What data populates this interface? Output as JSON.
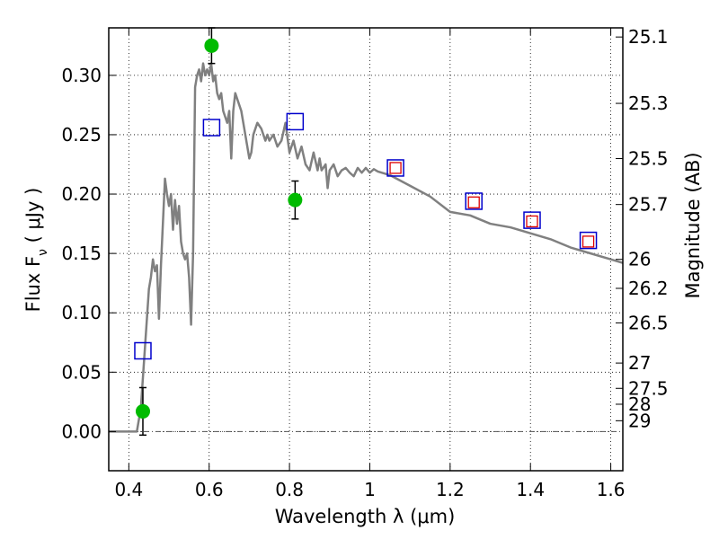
{
  "chart_data": {
    "type": "scatter",
    "xlabel": "Wavelength  λ (μm)",
    "ylabel": "Flux  F_ν  ( μJy )",
    "y2label": "Magnitude (AB)",
    "xlim": [
      0.35,
      1.63
    ],
    "ylim": [
      -0.033,
      0.34
    ],
    "grid": true,
    "x_ticks": [
      0.4,
      0.6,
      0.8,
      1.0,
      1.2,
      1.4,
      1.6
    ],
    "x_tick_labels": [
      "0.4",
      "0.6",
      "0.8",
      "1",
      "1.2",
      "1.4",
      "1.6"
    ],
    "y_ticks": [
      0.0,
      0.05,
      0.1,
      0.15,
      0.2,
      0.25,
      0.3
    ],
    "y_tick_labels": [
      "0.00",
      "0.05",
      "0.10",
      "0.15",
      "0.20",
      "0.25",
      "0.30"
    ],
    "mag_ticks": [
      {
        "label": "25.1",
        "flux": 0.3323
      },
      {
        "label": "25.3",
        "flux": 0.2764
      },
      {
        "label": "25.5",
        "flux": 0.2299
      },
      {
        "label": "25.7",
        "flux": 0.1912
      },
      {
        "label": "26",
        "flux": 0.145
      },
      {
        "label": "26.2",
        "flux": 0.1206
      },
      {
        "label": "26.5",
        "flux": 0.0915
      },
      {
        "label": "27",
        "flux": 0.0577
      },
      {
        "label": "27.5",
        "flux": 0.0364
      },
      {
        "label": "28",
        "flux": 0.023
      },
      {
        "label": "29",
        "flux": 0.0091
      }
    ],
    "model_sed": {
      "color": "#808080",
      "x": [
        0.35,
        0.42,
        0.43,
        0.44,
        0.45,
        0.455,
        0.46,
        0.465,
        0.47,
        0.475,
        0.48,
        0.49,
        0.495,
        0.5,
        0.505,
        0.51,
        0.515,
        0.52,
        0.525,
        0.53,
        0.535,
        0.54,
        0.545,
        0.55,
        0.555,
        0.56,
        0.565,
        0.57,
        0.575,
        0.58,
        0.585,
        0.59,
        0.595,
        0.6,
        0.605,
        0.61,
        0.615,
        0.62,
        0.625,
        0.63,
        0.635,
        0.64,
        0.645,
        0.65,
        0.655,
        0.66,
        0.665,
        0.67,
        0.68,
        0.69,
        0.7,
        0.705,
        0.71,
        0.72,
        0.73,
        0.74,
        0.745,
        0.75,
        0.76,
        0.77,
        0.78,
        0.79,
        0.8,
        0.81,
        0.82,
        0.83,
        0.84,
        0.85,
        0.86,
        0.87,
        0.875,
        0.88,
        0.89,
        0.895,
        0.9,
        0.91,
        0.92,
        0.93,
        0.94,
        0.95,
        0.96,
        0.97,
        0.98,
        0.99,
        1.0,
        1.01,
        1.02,
        1.05,
        1.1,
        1.15,
        1.2,
        1.25,
        1.3,
        1.35,
        1.4,
        1.45,
        1.5,
        1.55,
        1.6,
        1.63
      ],
      "y": [
        0.0,
        0.0,
        0.02,
        0.07,
        0.12,
        0.13,
        0.145,
        0.135,
        0.14,
        0.095,
        0.14,
        0.213,
        0.2,
        0.19,
        0.2,
        0.17,
        0.195,
        0.175,
        0.19,
        0.16,
        0.15,
        0.145,
        0.15,
        0.13,
        0.09,
        0.15,
        0.29,
        0.3,
        0.305,
        0.295,
        0.31,
        0.3,
        0.305,
        0.3,
        0.31,
        0.295,
        0.3,
        0.285,
        0.28,
        0.285,
        0.27,
        0.265,
        0.26,
        0.27,
        0.23,
        0.27,
        0.285,
        0.28,
        0.27,
        0.25,
        0.23,
        0.235,
        0.25,
        0.26,
        0.255,
        0.245,
        0.25,
        0.245,
        0.25,
        0.24,
        0.245,
        0.26,
        0.235,
        0.245,
        0.23,
        0.24,
        0.225,
        0.22,
        0.235,
        0.22,
        0.23,
        0.22,
        0.225,
        0.205,
        0.22,
        0.225,
        0.215,
        0.22,
        0.222,
        0.218,
        0.215,
        0.222,
        0.218,
        0.222,
        0.218,
        0.221,
        0.219,
        0.216,
        0.207,
        0.198,
        0.185,
        0.182,
        0.175,
        0.172,
        0.167,
        0.162,
        0.155,
        0.15,
        0.145,
        0.142
      ]
    },
    "series": [
      {
        "marker": "circle",
        "color": "#00bb00",
        "points": [
          {
            "x": 0.435,
            "y": 0.017,
            "err": 0.02
          },
          {
            "x": 0.606,
            "y": 0.325,
            "err": 0.015
          },
          {
            "x": 0.814,
            "y": 0.195,
            "err": 0.016
          }
        ]
      },
      {
        "marker": "open-square",
        "color": "#0000cc",
        "points": [
          {
            "x": 0.435,
            "y": 0.068
          },
          {
            "x": 0.606,
            "y": 0.256
          },
          {
            "x": 0.814,
            "y": 0.261
          },
          {
            "x": 1.064,
            "y": 0.222
          },
          {
            "x": 1.259,
            "y": 0.194
          },
          {
            "x": 1.404,
            "y": 0.178
          },
          {
            "x": 1.544,
            "y": 0.161
          }
        ]
      },
      {
        "marker": "small-open-square",
        "color": "#dd0000",
        "points": [
          {
            "x": 1.064,
            "y": 0.222
          },
          {
            "x": 1.259,
            "y": 0.193
          },
          {
            "x": 1.404,
            "y": 0.177
          },
          {
            "x": 1.544,
            "y": 0.16
          }
        ]
      }
    ]
  }
}
